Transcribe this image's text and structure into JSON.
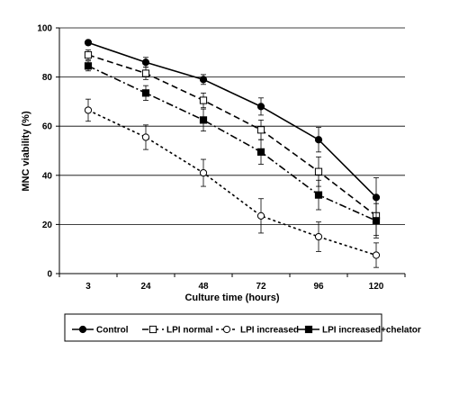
{
  "chart_data": {
    "type": "line",
    "title": "",
    "xlabel": "Culture time (hours)",
    "ylabel": "MNC viability (%)",
    "categories": [
      "3",
      "24",
      "48",
      "72",
      "96",
      "120"
    ],
    "ylim": [
      0,
      100
    ],
    "yticks": [
      "0",
      "20",
      "40",
      "60",
      "80",
      "100"
    ],
    "grid": "horizontal",
    "legend_position": "bottom",
    "series": [
      {
        "name": "Control",
        "values": [
          94,
          86,
          79,
          68,
          54.5,
          31
        ],
        "errors": [
          1,
          2,
          2,
          3.5,
          5,
          8
        ],
        "line_style": "solid",
        "marker": "filled-circle"
      },
      {
        "name": "LPI normal",
        "values": [
          89,
          81.5,
          70.5,
          58.5,
          41.5,
          23.5
        ],
        "errors": [
          2,
          2.5,
          3,
          4,
          6,
          8
        ],
        "line_style": "dashed",
        "marker": "open-square"
      },
      {
        "name": "LPI increased",
        "values": [
          66.5,
          55.5,
          41,
          23.5,
          15,
          7.5
        ],
        "errors": [
          4.5,
          5,
          5.5,
          7,
          6,
          5
        ],
        "line_style": "dotted",
        "marker": "open-circle"
      },
      {
        "name": "LPI increased+chelator",
        "values": [
          84.5,
          73.5,
          62.5,
          49.5,
          32,
          21.5
        ],
        "errors": [
          2,
          3,
          4.5,
          5,
          6,
          7
        ],
        "line_style": "dash-dot",
        "marker": "filled-square"
      }
    ]
  }
}
